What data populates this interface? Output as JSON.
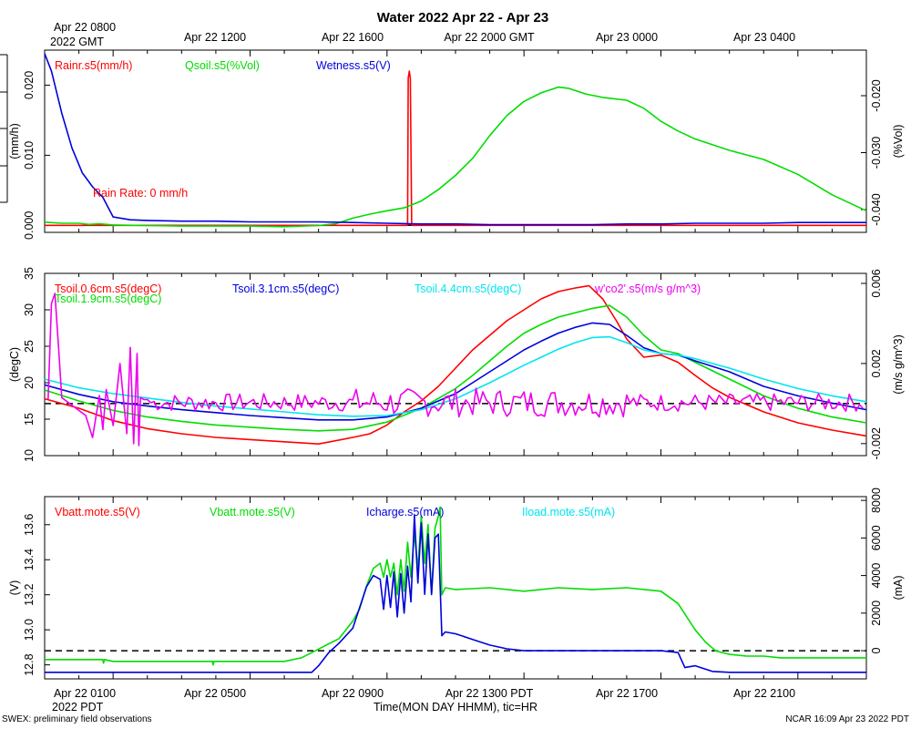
{
  "header": {
    "title": "Water 2022 Apr 22 - Apr 23",
    "top_ticks": [
      "Apr 22 0800",
      "Apr 22 1200",
      "Apr 22 1600",
      "Apr 22 2000 GMT",
      "Apr 23 0000",
      "Apr 23 0400"
    ],
    "top_year": "2022 GMT"
  },
  "footer": {
    "bottom_ticks": [
      "Apr 22 0100",
      "Apr 22 0500",
      "Apr 22 0900",
      "Apr 22 1300 PDT",
      "Apr 22 1700",
      "Apr 22 2100"
    ],
    "bottom_year": "2022 PDT",
    "xlabel": "Time(MON DAY HHMM), tic=HR",
    "left_note": "SWEX: preliminary field observations",
    "right_note": "NCAR 16:09 Apr 23 2022 PDT"
  },
  "colors": {
    "red": "#ff0000",
    "green": "#00dd00",
    "blue": "#0000dd",
    "cyan": "#00e5f0",
    "magenta": "#ee00ee",
    "black": "#000000"
  },
  "chart_data": [
    {
      "type": "line",
      "panel": "water",
      "x_unit": "hours since Apr 22 0000 PDT",
      "xlim": [
        -1,
        23
      ],
      "ylim_left": [
        -0.001,
        0.025
      ],
      "ylim_right": [
        -0.044,
        -0.012
      ],
      "ylabel_left": "(mm/h)",
      "ylabel_right": "(%Vol)",
      "left_ticks": [
        "0.000",
        "0.010",
        "0.020"
      ],
      "left_tick_values": [
        0.0,
        0.01,
        0.02
      ],
      "right_ticks": [
        "-0.040",
        "-0.030",
        "-0.020"
      ],
      "right_tick_values": [
        -0.04,
        -0.03,
        -0.02
      ],
      "annotation": "Rain Rate: 0 mm/h",
      "zero_line": 0.0,
      "series": [
        {
          "name": "Rainr.s5(mm/h)",
          "axis": "left",
          "color": "#ff0000",
          "x": [
            -1,
            9.6,
            9.62,
            9.65,
            9.68,
            9.72,
            23
          ],
          "y": [
            0,
            0,
            0.021,
            0.022,
            0.021,
            0,
            0
          ]
        },
        {
          "name": "Qsoil.s5(%Vol)",
          "axis": "right",
          "color": "#00dd00",
          "x": [
            -1,
            -0.5,
            0,
            0.3,
            0.6,
            1,
            2,
            3,
            4,
            5,
            6,
            7,
            7.5,
            8,
            8.5,
            9,
            9.5,
            10,
            10.5,
            11,
            11.5,
            12,
            12.5,
            13,
            13.5,
            14,
            14.3,
            14.8,
            15.3,
            16,
            16.5,
            17,
            17.5,
            18,
            18.5,
            19,
            20,
            21,
            22,
            23
          ],
          "y": [
            -0.0422,
            -0.0424,
            -0.0424,
            -0.0426,
            -0.0425,
            -0.0427,
            -0.0428,
            -0.0429,
            -0.0429,
            -0.0429,
            -0.043,
            -0.0428,
            -0.0425,
            -0.0415,
            -0.0408,
            -0.0402,
            -0.0397,
            -0.0385,
            -0.0365,
            -0.034,
            -0.031,
            -0.027,
            -0.0235,
            -0.021,
            -0.0195,
            -0.0185,
            -0.0187,
            -0.0197,
            -0.0203,
            -0.0208,
            -0.0222,
            -0.0245,
            -0.0262,
            -0.0276,
            -0.0286,
            -0.0296,
            -0.0312,
            -0.0338,
            -0.0374,
            -0.0402
          ]
        },
        {
          "name": "Wetness.s5(V)",
          "axis": "left",
          "color": "#0000dd",
          "x": [
            -1,
            -0.8,
            -0.5,
            -0.2,
            0.1,
            0.4,
            0.7,
            1,
            1.5,
            2,
            3,
            4,
            5,
            6,
            7,
            8,
            9,
            10,
            11,
            12,
            13,
            14,
            15,
            16,
            17,
            18,
            19,
            20,
            21,
            22,
            23
          ],
          "y": [
            0.0245,
            0.022,
            0.016,
            0.011,
            0.0075,
            0.0055,
            0.004,
            0.0012,
            0.0008,
            0.0007,
            0.0006,
            0.0006,
            0.0005,
            0.0005,
            0.0005,
            0.0004,
            0.0003,
            0.0002,
            0.0002,
            0.0001,
            0.0001,
            0.0001,
            0.0001,
            0.0002,
            0.0002,
            0.0003,
            0.0003,
            0.0003,
            0.0004,
            0.0004,
            0.0004
          ]
        }
      ]
    },
    {
      "type": "line",
      "panel": "temperature",
      "x_unit": "hours since Apr 22 0000 PDT",
      "xlim": [
        -1,
        23
      ],
      "ylim_left": [
        10,
        35
      ],
      "ylim_right": [
        -0.0026,
        0.0065
      ],
      "ylabel_left": "(degC)",
      "ylabel_right": "(m/s g/m^3)",
      "left_ticks": [
        "10",
        "15",
        "20",
        "25",
        "30",
        "35"
      ],
      "left_tick_values": [
        10,
        15,
        20,
        25,
        30,
        35
      ],
      "right_ticks": [
        "-0.002",
        "0.002",
        "0.006"
      ],
      "right_tick_values": [
        -0.002,
        0.002,
        0.006
      ],
      "zero_line": 0.0,
      "series": [
        {
          "name": "Tsoil.0.6cm.s5(degC)",
          "axis": "left",
          "color": "#ff0000",
          "x": [
            -1,
            0,
            1,
            2,
            3,
            4,
            5,
            6,
            7,
            8,
            8.5,
            9,
            9.5,
            10,
            10.5,
            11,
            11.5,
            12,
            12.5,
            13,
            13.5,
            14,
            14.5,
            14.9,
            15.3,
            15.7,
            16,
            16.5,
            17,
            17.5,
            18,
            18.5,
            19,
            20,
            21,
            22,
            23
          ],
          "y": [
            17.8,
            16.5,
            14.8,
            13.7,
            13.0,
            12.5,
            12.2,
            11.9,
            11.6,
            12.5,
            13.0,
            14.2,
            16.0,
            17.5,
            19.5,
            22.0,
            24.5,
            26.5,
            28.5,
            30.0,
            31.5,
            32.5,
            33.0,
            33.3,
            31.5,
            28.5,
            26.0,
            23.5,
            23.8,
            22.8,
            21.0,
            19.3,
            18.0,
            16.0,
            14.5,
            13.5,
            12.7
          ]
        },
        {
          "name": "Tsoil.1.9cm.s5(degC)",
          "axis": "left",
          "color": "#00dd00",
          "x": [
            -1,
            0,
            1,
            2,
            3,
            4,
            5,
            6,
            7,
            8,
            9,
            10,
            11,
            11.5,
            12,
            12.5,
            13,
            13.5,
            14,
            14.5,
            15,
            15.5,
            16,
            16.5,
            17,
            17.5,
            18,
            19,
            20,
            21,
            22,
            23
          ],
          "y": [
            19.0,
            17.5,
            16.2,
            15.3,
            14.7,
            14.2,
            13.9,
            13.6,
            13.4,
            13.6,
            14.6,
            16.5,
            19.2,
            21.0,
            23.0,
            25.0,
            26.8,
            28.0,
            29.0,
            29.6,
            30.2,
            30.6,
            29.0,
            26.5,
            24.5,
            24.0,
            22.8,
            20.5,
            18.2,
            16.5,
            15.3,
            14.5
          ]
        },
        {
          "name": "Tsoil.3.1cm.s5(degC)",
          "axis": "left",
          "color": "#0000dd",
          "x": [
            -1,
            0,
            1,
            2,
            3,
            4,
            5,
            6,
            7,
            8,
            9,
            10,
            11,
            11.5,
            12,
            12.5,
            13,
            13.5,
            14,
            14.5,
            15,
            15.5,
            16,
            16.5,
            17,
            17.5,
            18,
            19,
            20,
            21,
            22,
            23
          ],
          "y": [
            19.7,
            18.4,
            17.4,
            16.8,
            16.3,
            15.9,
            15.5,
            15.2,
            14.9,
            14.9,
            15.3,
            16.5,
            18.5,
            20.0,
            21.5,
            23.0,
            24.5,
            25.7,
            26.8,
            27.6,
            28.2,
            28.0,
            26.5,
            24.8,
            24.0,
            23.8,
            23.0,
            21.5,
            19.5,
            18.2,
            17.2,
            16.3
          ]
        },
        {
          "name": "Tsoil.4.4cm.s5(degC)",
          "axis": "left",
          "color": "#00e5f0",
          "x": [
            -1,
            0,
            1,
            2,
            3,
            4,
            5,
            6,
            7,
            8,
            9,
            10,
            11,
            12,
            12.5,
            13,
            13.5,
            14,
            14.5,
            15,
            15.5,
            16,
            16.5,
            17,
            17.5,
            18,
            19,
            20,
            21,
            22,
            23
          ],
          "y": [
            20.5,
            19.3,
            18.5,
            17.9,
            17.3,
            16.8,
            16.4,
            16.0,
            15.6,
            15.4,
            15.5,
            16.3,
            17.8,
            20.0,
            21.2,
            22.4,
            23.5,
            24.6,
            25.5,
            26.2,
            26.3,
            25.5,
            24.5,
            24.0,
            23.8,
            23.3,
            22.0,
            20.5,
            19.2,
            18.2,
            17.4
          ]
        },
        {
          "name": "w'co2'.s5(m/s g/m^3)",
          "axis": "right",
          "color": "#ee00ee",
          "style": "noisy",
          "baseline": 5e-05,
          "noise": 0.00045,
          "seed": 7,
          "x": [
            -0.9,
            -0.8,
            -0.7,
            -0.6,
            -0.5,
            0.2,
            0.4,
            0.6,
            0.7,
            0.8,
            1.0,
            1.2,
            1.4,
            1.5,
            1.6,
            1.7,
            1.75,
            1.8,
            1.9,
            2.0
          ],
          "y": [
            0.0002,
            0.005,
            0.0055,
            0.003,
            0.0003,
            -0.0006,
            -0.0017,
            0.0004,
            -0.0013,
            0.0007,
            -0.0011,
            0.002,
            -0.0015,
            0.0028,
            -0.002,
            0.0025,
            -0.0021,
            0.0003,
            0.0002,
            0.0002
          ]
        }
      ]
    },
    {
      "type": "line",
      "panel": "power",
      "x_unit": "hours since Apr 22 0000 PDT",
      "xlim": [
        -1,
        23
      ],
      "ylim_left": [
        12.72,
        13.76
      ],
      "ylim_right": [
        -1500,
        8200
      ],
      "ylabel_left": "(V)",
      "ylabel_right": "(mA)",
      "left_ticks": [
        "12.8",
        "13.0",
        "13.2",
        "13.4",
        "13.6"
      ],
      "left_tick_values": [
        12.8,
        13.0,
        13.2,
        13.4,
        13.6
      ],
      "right_ticks": [
        "0",
        "2000",
        "4000",
        "6000",
        "8000"
      ],
      "right_tick_values": [
        0,
        2000,
        4000,
        6000,
        8000
      ],
      "zero_line": 0,
      "series": [
        {
          "name": "Vbatt.mote.s5(V)",
          "axis": "left",
          "color": "#ff0000",
          "x": [],
          "y": []
        },
        {
          "name": "Vbatt.mote.s5(V)",
          "axis": "left",
          "color": "#00dd00",
          "x": [
            -1,
            0,
            0.7,
            0.72,
            0.75,
            1,
            2,
            3,
            3.9,
            3.92,
            3.95,
            4,
            5,
            6,
            6.5,
            7,
            7.3,
            7.6,
            8,
            8.2,
            8.4,
            8.6,
            8.8,
            8.9,
            9.0,
            9.1,
            9.2,
            9.3,
            9.4,
            9.5,
            9.6,
            9.7,
            9.8,
            9.9,
            10.0,
            10.1,
            10.2,
            10.3,
            10.4,
            10.5,
            10.55,
            10.6,
            10.7,
            11,
            12,
            13,
            14,
            15,
            16,
            17,
            17.5,
            18,
            18.3,
            18.6,
            19,
            19.5,
            20,
            20.5,
            21,
            21.5,
            22,
            22.5,
            23
          ],
          "y": [
            12.83,
            12.83,
            12.83,
            12.81,
            12.83,
            12.82,
            12.82,
            12.82,
            12.82,
            12.8,
            12.82,
            12.82,
            12.82,
            12.82,
            12.84,
            12.89,
            12.92,
            12.95,
            13.05,
            13.12,
            13.25,
            13.35,
            13.38,
            13.3,
            13.4,
            13.3,
            13.38,
            13.2,
            13.4,
            13.22,
            13.5,
            13.3,
            13.55,
            13.35,
            13.65,
            13.38,
            13.6,
            13.2,
            13.58,
            13.65,
            13.7,
            13.2,
            13.24,
            13.23,
            13.24,
            13.22,
            13.24,
            13.23,
            13.24,
            13.22,
            13.15,
            13.0,
            12.93,
            12.88,
            12.86,
            12.85,
            12.85,
            12.84,
            12.84,
            12.84,
            12.84,
            12.84,
            12.84
          ]
        },
        {
          "name": "Icharge.s5(mA)",
          "axis": "right",
          "color": "#0000dd",
          "x": [
            -1,
            0,
            1,
            2,
            3,
            4,
            5,
            6,
            6.8,
            7,
            7.3,
            7.6,
            8,
            8.2,
            8.4,
            8.6,
            8.8,
            8.9,
            9.0,
            9.1,
            9.2,
            9.3,
            9.4,
            9.5,
            9.6,
            9.7,
            9.8,
            9.9,
            10.0,
            10.1,
            10.2,
            10.3,
            10.4,
            10.5,
            10.6,
            10.7,
            11,
            11.5,
            12,
            12.5,
            13,
            14,
            15,
            16,
            17,
            17.5,
            17.7,
            18,
            18.5,
            19,
            20,
            21,
            22,
            23
          ],
          "y": [
            -1150,
            -1150,
            -1150,
            -1150,
            -1150,
            -1150,
            -1150,
            -1150,
            -1150,
            -800,
            -100,
            400,
            1200,
            2300,
            3400,
            4000,
            3800,
            2200,
            4000,
            2300,
            4200,
            1800,
            4100,
            2000,
            4500,
            2600,
            7200,
            3600,
            6800,
            3000,
            6200,
            3000,
            6000,
            6200,
            800,
            1000,
            900,
            600,
            300,
            100,
            0,
            0,
            0,
            0,
            0,
            -100,
            -900,
            -800,
            -1100,
            -1150,
            -1150,
            -1150,
            -1150,
            -1150
          ]
        },
        {
          "name": "Iload.mote.s5(mA)",
          "axis": "right",
          "color": "#00e5f0",
          "x": [],
          "y": []
        }
      ]
    }
  ]
}
